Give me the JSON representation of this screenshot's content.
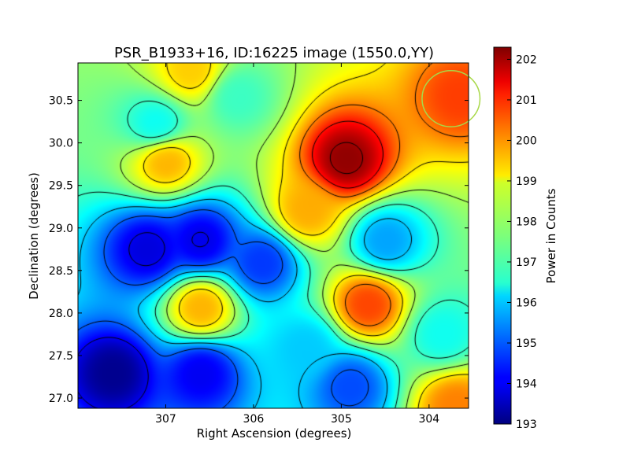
{
  "chart_data": {
    "type": "heatmap",
    "title": "PSR_B1933+16, ID:16225 image (1550.0,YY)",
    "xlabel": "Right Ascension (degrees)",
    "ylabel": "Declination (degrees)",
    "xlim": [
      308.0,
      303.55
    ],
    "ylim": [
      26.88,
      30.94
    ],
    "x_ticks": [
      307,
      306,
      305,
      304
    ],
    "x_tick_labels": [
      "307",
      "306",
      "305",
      "304"
    ],
    "y_ticks": [
      27.0,
      27.5,
      28.0,
      28.5,
      29.0,
      29.5,
      30.0,
      30.5
    ],
    "y_tick_labels": [
      "27.0",
      "27.5",
      "28.0",
      "28.5",
      "29.0",
      "29.5",
      "30.0",
      "30.5"
    ],
    "colorbar": {
      "label": "Power in Counts",
      "range": [
        193.0,
        202.3
      ],
      "ticks": [
        193,
        194,
        195,
        196,
        197,
        198,
        199,
        200,
        201,
        202
      ],
      "tick_labels": [
        "193",
        "194",
        "195",
        "196",
        "197",
        "198",
        "199",
        "200",
        "201",
        "202"
      ],
      "colormap": "jet"
    },
    "contour_color": "#000000",
    "features": [
      {
        "ra": 304.95,
        "dec": 29.8,
        "value": 202.2,
        "kind": "peak"
      },
      {
        "ra": 304.7,
        "dec": 28.1,
        "value": 200.6,
        "kind": "peak"
      },
      {
        "ra": 306.6,
        "dec": 28.07,
        "value": 199.6,
        "kind": "peak"
      },
      {
        "ra": 307.0,
        "dec": 29.8,
        "value": 199.6,
        "kind": "peak"
      },
      {
        "ra": 303.65,
        "dec": 30.55,
        "value": 200.6,
        "kind": "peak"
      },
      {
        "ra": 306.7,
        "dec": 30.85,
        "value": 199.3,
        "kind": "peak"
      },
      {
        "ra": 305.4,
        "dec": 29.2,
        "value": 199.6,
        "kind": "peak"
      },
      {
        "ra": 303.7,
        "dec": 26.92,
        "value": 200.0,
        "kind": "peak"
      },
      {
        "ra": 307.1,
        "dec": 30.2,
        "value": 196.5,
        "kind": "trough"
      },
      {
        "ra": 306.2,
        "dec": 30.55,
        "value": 197.0,
        "kind": "trough"
      },
      {
        "ra": 304.5,
        "dec": 28.85,
        "value": 195.6,
        "kind": "trough"
      },
      {
        "ra": 303.85,
        "dec": 27.75,
        "value": 196.6,
        "kind": "trough"
      },
      {
        "ra": 304.9,
        "dec": 27.15,
        "value": 194.8,
        "kind": "trough"
      },
      {
        "ra": 305.4,
        "dec": 27.6,
        "value": 196.0,
        "kind": "trough"
      },
      {
        "ra": 307.2,
        "dec": 28.75,
        "value": 193.8,
        "kind": "trough"
      },
      {
        "ra": 306.6,
        "dec": 28.85,
        "value": 193.9,
        "kind": "trough"
      },
      {
        "ra": 305.9,
        "dec": 28.6,
        "value": 194.6,
        "kind": "trough"
      },
      {
        "ra": 307.6,
        "dec": 27.3,
        "value": 193.1,
        "kind": "trough"
      },
      {
        "ra": 306.6,
        "dec": 27.3,
        "value": 194.0,
        "kind": "trough"
      }
    ],
    "background_value": 197.9,
    "markers": [
      {
        "shape": "circle",
        "ra": 303.75,
        "dec": 30.52,
        "radius_deg": 0.33,
        "color": "#a8d848"
      }
    ]
  }
}
